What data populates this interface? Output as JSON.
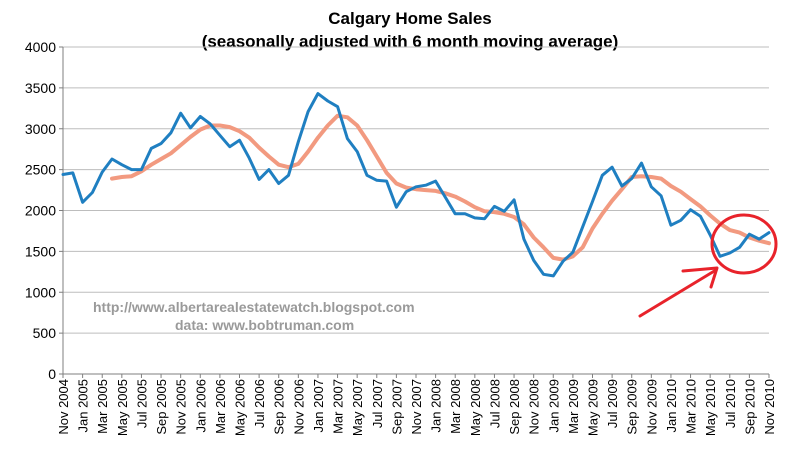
{
  "chart_data": {
    "type": "line",
    "title": "Calgary Home Sales",
    "subtitle": "(seasonally adjusted with 6 month moving average)",
    "xlabel": "",
    "ylabel": "",
    "ylim": [
      0,
      4000
    ],
    "yticks": [
      "0",
      "500",
      "1000",
      "1500",
      "2000",
      "2500",
      "3000",
      "3500",
      "4000"
    ],
    "grid": true,
    "categories": [
      "Nov 2004",
      "Dec 2004",
      "Jan 2005",
      "Feb 2005",
      "Mar 2005",
      "Apr 2005",
      "May 2005",
      "Jun 2005",
      "Jul 2005",
      "Aug 2005",
      "Sep 2005",
      "Oct 2005",
      "Nov 2005",
      "Dec 2005",
      "Jan 2006",
      "Feb 2006",
      "Mar 2006",
      "Apr 2006",
      "May 2006",
      "Jun 2006",
      "Jul 2006",
      "Aug 2006",
      "Sep 2006",
      "Oct 2006",
      "Nov 2006",
      "Dec 2006",
      "Jan 2007",
      "Feb 2007",
      "Mar 2007",
      "Apr 2007",
      "May 2007",
      "Jun 2007",
      "Jul 2007",
      "Aug 2007",
      "Sep 2007",
      "Oct 2007",
      "Nov 2007",
      "Dec 2007",
      "Jan 2008",
      "Feb 2008",
      "Mar 2008",
      "Apr 2008",
      "May 2008",
      "Jun 2008",
      "Jul 2008",
      "Aug 2008",
      "Sep 2008",
      "Oct 2008",
      "Nov 2008",
      "Dec 2008",
      "Jan 2009",
      "Feb 2009",
      "Mar 2009",
      "Apr 2009",
      "May 2009",
      "Jun 2009",
      "Jul 2009",
      "Aug 2009",
      "Sep 2009",
      "Oct 2009",
      "Nov 2009",
      "Dec 2009",
      "Jan 2010",
      "Feb 2010",
      "Mar 2010",
      "Apr 2010",
      "May 2010",
      "Jun 2010",
      "Jul 2010",
      "Aug 2010",
      "Sep 2010",
      "Oct 2010",
      "Nov 2010"
    ],
    "xtick_labels": [
      "Nov 2004",
      "Jan 2005",
      "Mar 2005",
      "May 2005",
      "Jul 2005",
      "Sep 2005",
      "Nov 2005",
      "Jan 2006",
      "Mar 2006",
      "May 2006",
      "Jul 2006",
      "Sep 2006",
      "Nov 2006",
      "Jan 2007",
      "Mar 2007",
      "May 2007",
      "Jul 2007",
      "Sep 2007",
      "Nov 2007",
      "Jan 2008",
      "Mar 2008",
      "May 2008",
      "Jul 2008",
      "Sep 2008",
      "Nov 2008",
      "Jan 2009",
      "Mar 2009",
      "May 2009",
      "Jul 2009",
      "Sep 2009",
      "Nov 2009",
      "Jan 2010",
      "Mar 2010",
      "May 2010",
      "Jul 2010",
      "Sep 2010",
      "Nov 2010"
    ],
    "series": [
      {
        "color": "#1f7fc1",
        "values": [
          2440,
          2460,
          2100,
          2220,
          2470,
          2630,
          2560,
          2500,
          2500,
          2760,
          2820,
          2950,
          3190,
          3010,
          3150,
          3060,
          2920,
          2780,
          2860,
          2640,
          2380,
          2500,
          2330,
          2430,
          2840,
          3210,
          3430,
          3340,
          3270,
          2880,
          2720,
          2430,
          2370,
          2360,
          2040,
          2230,
          2290,
          2310,
          2360,
          2160,
          1960,
          1960,
          1910,
          1900,
          2050,
          1990,
          2130,
          1650,
          1390,
          1220,
          1200,
          1380,
          1490,
          1800,
          2110,
          2430,
          2530,
          2300,
          2390,
          2580,
          2290,
          2180,
          1820,
          1880,
          2010,
          1930,
          1700,
          1440,
          1480,
          1550,
          1710,
          1650,
          1730
        ]
      },
      {
        "color": "#f29a80",
        "values": [
          null,
          null,
          null,
          null,
          null,
          2390,
          2410,
          2420,
          2480,
          2560,
          2630,
          2700,
          2800,
          2900,
          2990,
          3040,
          3040,
          3020,
          2970,
          2890,
          2770,
          2660,
          2560,
          2530,
          2570,
          2720,
          2890,
          3040,
          3160,
          3140,
          3040,
          2860,
          2660,
          2460,
          2330,
          2280,
          2260,
          2250,
          2240,
          2210,
          2170,
          2110,
          2040,
          1990,
          1980,
          1960,
          1920,
          1830,
          1670,
          1550,
          1420,
          1400,
          1440,
          1550,
          1780,
          1960,
          2120,
          2260,
          2410,
          2420,
          2410,
          2390,
          2300,
          2230,
          2140,
          2050,
          1940,
          1840,
          1760,
          1730,
          1670,
          1630,
          1600
        ]
      }
    ],
    "annotations": {
      "watermark_line1": "http://www.albertarealestatewatch.blogspot.com",
      "watermark_line2": "data: www.bobtruman.com",
      "highlight_color": "#e8232b"
    }
  }
}
